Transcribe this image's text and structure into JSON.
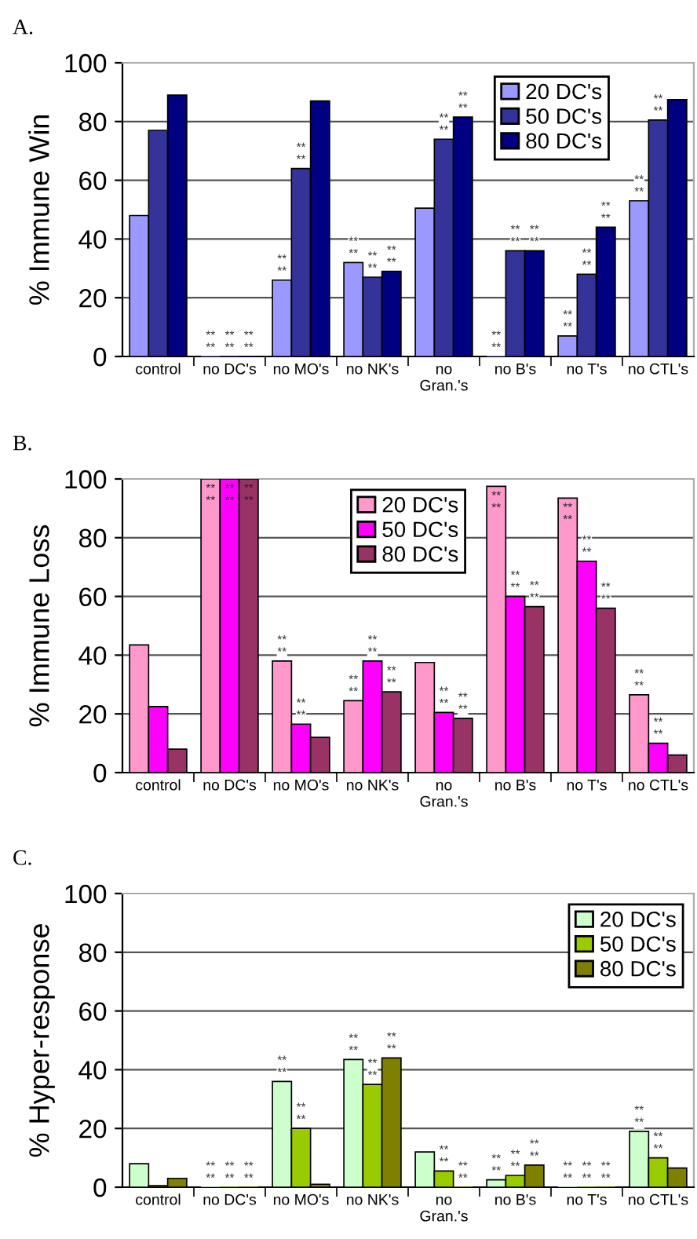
{
  "chart_data": [
    {
      "type": "bar",
      "title": "A.",
      "ylabel": "% Immune Win",
      "categories": [
        "control",
        "no DC's",
        "no MO's",
        "no NK's",
        "no\nGran.'s",
        "no B's",
        "no T's",
        "no CTL's"
      ],
      "ylim": [
        0,
        100
      ],
      "yticks": [
        0,
        20,
        40,
        60,
        80,
        100
      ],
      "grid": "y",
      "legend": "top right",
      "series": [
        {
          "name": "20 DC's",
          "color": "#9999ff",
          "values": [
            48,
            0,
            26,
            32,
            50.5,
            0,
            7,
            53
          ],
          "value_labels": [
            null,
            "**\n**",
            "**\n**",
            "**\n**",
            null,
            "**\n**",
            "**\n**",
            "**\n**"
          ]
        },
        {
          "name": "50 DC's",
          "color": "#333399",
          "values": [
            77,
            0,
            64,
            27,
            74,
            36,
            28,
            80.5
          ],
          "value_labels": [
            null,
            "**\n**",
            "**\n**",
            "**\n**",
            "**\n**",
            "**\n**",
            "**\n**",
            "**\n**"
          ]
        },
        {
          "name": "80 DC's",
          "color": "#000080",
          "values": [
            89,
            0,
            87,
            29,
            81.5,
            36,
            44,
            87.5
          ],
          "value_labels": [
            null,
            "**\n**",
            null,
            "**\n**",
            "**\n**",
            "**\n**",
            "**\n**",
            null
          ]
        }
      ]
    },
    {
      "type": "bar",
      "title": "B.",
      "ylabel": "% Immune Loss",
      "categories": [
        "control",
        "no DC's",
        "no MO's",
        "no NK's",
        "no\nGran.'s",
        "no B's",
        "no T's",
        "no CTL's"
      ],
      "ylim": [
        0,
        100
      ],
      "yticks": [
        0,
        20,
        40,
        60,
        80,
        100
      ],
      "grid": "y",
      "legend": "top",
      "series": [
        {
          "name": "20 DC's",
          "color": "#ff99cc",
          "values": [
            43.5,
            100,
            38,
            24.5,
            37.5,
            97.5,
            93.5,
            26.5
          ],
          "value_labels": [
            null,
            "**\n**",
            "**\n**",
            "**\n**",
            null,
            "**\n**",
            "**\n**",
            "**\n**"
          ]
        },
        {
          "name": "50 DC's",
          "color": "#ff00ff",
          "values": [
            22.5,
            100,
            16.5,
            38,
            20.5,
            60,
            72,
            10
          ],
          "value_labels": [
            null,
            "**\n**",
            "**\n**",
            "**\n**",
            "**\n**",
            "**\n**",
            "**\n**",
            "**\n**"
          ]
        },
        {
          "name": "80 DC's",
          "color": "#993366",
          "values": [
            8,
            100,
            12,
            27.5,
            18.5,
            56.5,
            56,
            6
          ],
          "value_labels": [
            null,
            "**\n**",
            null,
            "**\n**",
            "**\n**",
            "**\n**",
            "**\n**",
            null
          ]
        }
      ]
    },
    {
      "type": "bar",
      "title": "C.",
      "ylabel": "% Hyper-response",
      "categories": [
        "control",
        "no DC's",
        "no MO's",
        "no NK's",
        "no\nGran.'s",
        "no B's",
        "no T's",
        "no CTL's"
      ],
      "ylim": [
        0,
        100
      ],
      "yticks": [
        0,
        20,
        40,
        60,
        80,
        100
      ],
      "grid": "y",
      "legend": "top right",
      "series": [
        {
          "name": "20 DC's",
          "color": "#ccffcc",
          "values": [
            8,
            0,
            36,
            43.5,
            12,
            2.5,
            0,
            19
          ],
          "value_labels": [
            null,
            "**\n**",
            "**\n**",
            "**\n**",
            null,
            "**\n**",
            "**\n**",
            "**\n**"
          ]
        },
        {
          "name": "50 DC's",
          "color": "#99cc00",
          "values": [
            0.5,
            0,
            20,
            35,
            5.5,
            4,
            0,
            10
          ],
          "value_labels": [
            null,
            "**\n**",
            "**\n**",
            "**\n**",
            "**\n**",
            "**\n**",
            "**\n**",
            "**\n**"
          ]
        },
        {
          "name": "80 DC's",
          "color": "#808000",
          "values": [
            3,
            0,
            1,
            44,
            0,
            7.5,
            0,
            6.5
          ],
          "value_labels": [
            null,
            "**\n**",
            null,
            "**\n**",
            "**\n**",
            "**\n**",
            "**\n**",
            null
          ]
        }
      ]
    }
  ]
}
